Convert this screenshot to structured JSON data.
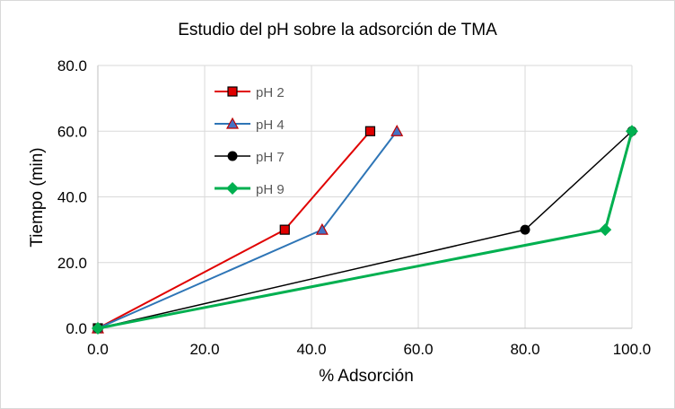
{
  "chart_data": {
    "type": "line",
    "title": "Estudio del pH sobre la adsorción de TMA",
    "xlabel": "% Adsorción",
    "ylabel": "Tiempo (min)",
    "xlim": [
      0,
      100
    ],
    "ylim": [
      0,
      80
    ],
    "x_ticks": [
      "0.0",
      "20.0",
      "40.0",
      "60.0",
      "80.0",
      "100.0"
    ],
    "y_ticks": [
      "0.0",
      "20.0",
      "40.0",
      "60.0",
      "80.0"
    ],
    "grid": true,
    "legend_position": "top-left inside",
    "series": [
      {
        "name": "pH 2",
        "color": "#e00000",
        "marker": "square",
        "x": [
          0,
          35,
          51
        ],
        "y": [
          0,
          30,
          60
        ]
      },
      {
        "name": "pH 4",
        "color": "#2e75b6",
        "marker": "triangle",
        "x": [
          0,
          42,
          56
        ],
        "y": [
          0,
          30,
          60
        ]
      },
      {
        "name": "pH 7",
        "color": "#000000",
        "marker": "circle",
        "x": [
          0,
          80,
          100
        ],
        "y": [
          0,
          30,
          60
        ]
      },
      {
        "name": "pH 9",
        "color": "#00b050",
        "marker": "diamond",
        "x": [
          0,
          95,
          100
        ],
        "y": [
          0,
          30,
          60
        ]
      }
    ]
  }
}
